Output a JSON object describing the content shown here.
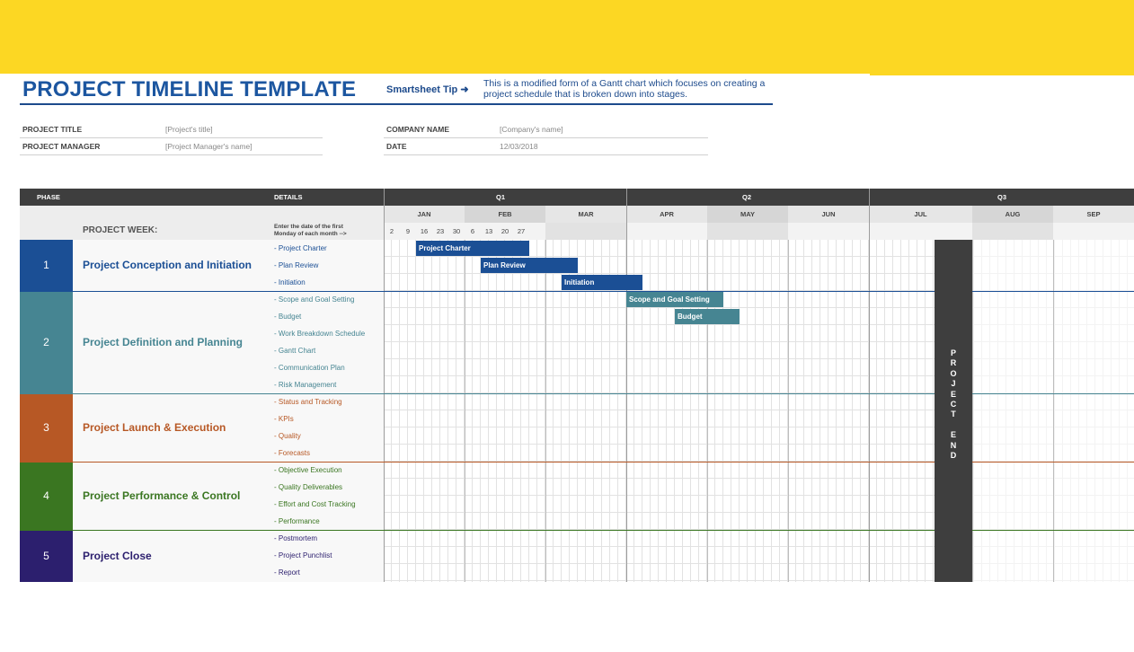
{
  "header": {
    "title": "PROJECT TIMELINE TEMPLATE",
    "tip_label": "Smartsheet Tip ➜",
    "tip_text": "This is a modified form of a Gantt chart which focuses on creating a project schedule that is broken down into stages."
  },
  "meta": {
    "project_title_label": "PROJECT TITLE",
    "project_title_value": "[Project's title]",
    "project_manager_label": "PROJECT MANAGER",
    "project_manager_value": "[Project Manager's name]",
    "company_name_label": "COMPANY NAME",
    "company_name_value": "[Company's name]",
    "date_label": "DATE",
    "date_value": "12/03/2018"
  },
  "grid": {
    "phase_header": "PHASE",
    "details_header": "DETAILS",
    "project_week_label": "PROJECT WEEK:",
    "enter_note_line1": "Enter the date of the first",
    "enter_note_line2": "Monday of each month -->",
    "quarters": [
      "Q1",
      "Q2",
      "Q3"
    ],
    "months": [
      "JAN",
      "FEB",
      "MAR",
      "APR",
      "MAY",
      "JUN",
      "JUL",
      "AUG",
      "SEP"
    ],
    "weeks": [
      "2",
      "9",
      "16",
      "23",
      "30",
      "6",
      "13",
      "20",
      "27"
    ],
    "project_end_label": "P\nR\nO\nJ\nE\nC\nT\n \nE\nN\nD"
  },
  "phases": [
    {
      "number": "1",
      "name": "Project Conception and Initiation",
      "color": "#1b4f95",
      "details": [
        "- Project Charter",
        "- Plan Review",
        "- Initiation"
      ]
    },
    {
      "number": "2",
      "name": "Project Definition and Planning",
      "color": "#468592",
      "details": [
        "- Scope and Goal Setting",
        "- Budget",
        "- Work Breakdown Schedule",
        "- Gantt Chart",
        "- Communication Plan",
        "- Risk Management"
      ]
    },
    {
      "number": "3",
      "name": "Project Launch & Execution",
      "color": "#b75825",
      "details": [
        "- Status and Tracking",
        "- KPIs",
        "- Quality",
        "- Forecasts"
      ]
    },
    {
      "number": "4",
      "name": "Project Performance & Control",
      "color": "#3a7621",
      "details": [
        "- Objective Execution",
        "- Quality Deliverables",
        "- Effort and Cost Tracking",
        "- Performance"
      ]
    },
    {
      "number": "5",
      "name": "Project Close",
      "color": "#2c1f6e",
      "details": [
        "- Postmortem",
        "- Project Punchlist",
        "- Report"
      ]
    }
  ],
  "tasks": [
    {
      "label": "Project Charter",
      "color": "#1b4f95"
    },
    {
      "label": "Plan Review",
      "color": "#1b4f95"
    },
    {
      "label": "Initiation",
      "color": "#1b4f95"
    },
    {
      "label": "Scope and Goal Setting",
      "color": "#468592"
    },
    {
      "label": "Budget",
      "color": "#468592"
    }
  ]
}
